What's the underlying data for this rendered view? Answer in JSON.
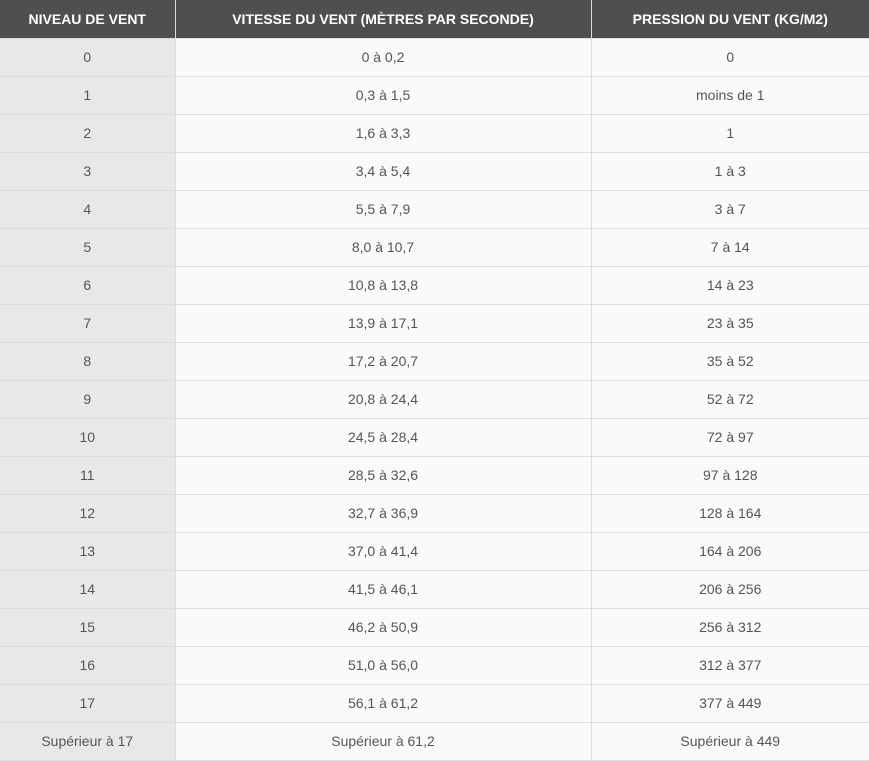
{
  "table": {
    "headers": [
      "NIVEAU DE VENT",
      "VITESSE DU VENT (MÈTRES PAR SECONDE)",
      "PRESSION DU VENT (KG/M2)"
    ],
    "rows": [
      [
        "0",
        "0 à 0,2",
        "0"
      ],
      [
        "1",
        "0,3 à 1,5",
        "moins de 1"
      ],
      [
        "2",
        "1,6 à 3,3",
        "1"
      ],
      [
        "3",
        "3,4 à 5,4",
        "1 à 3"
      ],
      [
        "4",
        "5,5 à 7,9",
        "3 à 7"
      ],
      [
        "5",
        "8,0 à 10,7",
        "7 à 14"
      ],
      [
        "6",
        "10,8 à 13,8",
        "14 à 23"
      ],
      [
        "7",
        "13,9 à 17,1",
        "23 à 35"
      ],
      [
        "8",
        "17,2 à 20,7",
        "35 à 52"
      ],
      [
        "9",
        "20,8 à 24,4",
        "52 à 72"
      ],
      [
        "10",
        "24,5 à 28,4",
        "72 à 97"
      ],
      [
        "11",
        "28,5 à 32,6",
        "97 à 128"
      ],
      [
        "12",
        "32,7 à 36,9",
        "128 à 164"
      ],
      [
        "13",
        "37,0 à 41,4",
        "164 à 206"
      ],
      [
        "14",
        "41,5 à 46,1",
        "206 à 256"
      ],
      [
        "15",
        "46,2 à 50,9",
        "256 à 312"
      ],
      [
        "16",
        "51,0 à 56,0",
        "312 à 377"
      ],
      [
        "17",
        "56,1 à 61,2",
        "377 à 449"
      ],
      [
        "Supérieur à 17",
        "Supérieur à 61,2",
        "Supérieur à 449"
      ]
    ]
  },
  "colors": {
    "header_bg": "#4f4f4f",
    "first_col_bg": "#e8e8e8",
    "cell_bg": "#fafafa",
    "text": "#555555"
  }
}
